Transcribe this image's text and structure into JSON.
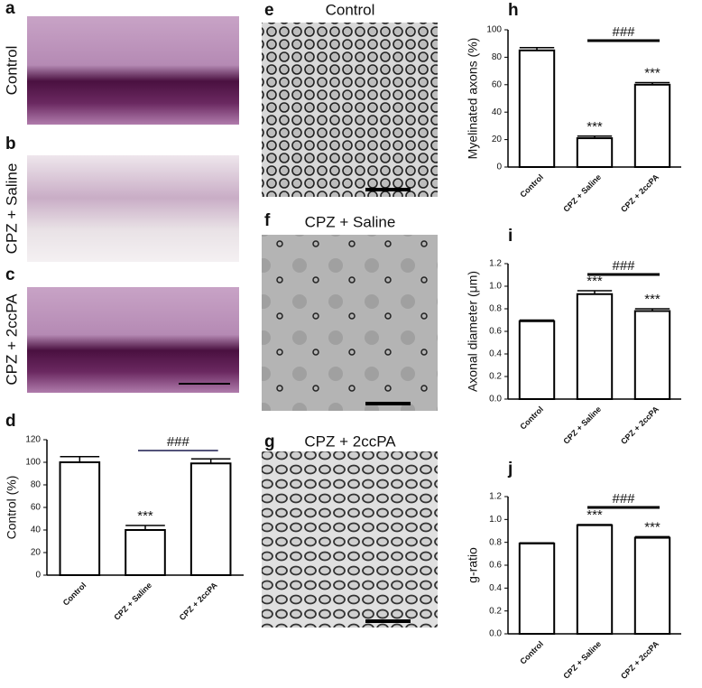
{
  "images": [
    {
      "letter": "a",
      "label": "Control"
    },
    {
      "letter": "b",
      "label": "CPZ + Saline"
    },
    {
      "letter": "c",
      "label": "CPZ + 2ccPA"
    },
    {
      "letter": "e",
      "label": "Control"
    },
    {
      "letter": "f",
      "label": "CPZ + Saline"
    },
    {
      "letter": "g",
      "label": "CPZ + 2ccPA"
    }
  ],
  "chart_data": [
    {
      "type": "bar",
      "panel": "d",
      "y_label": "Control (%)",
      "categories": [
        "Control",
        "CPZ + Saline",
        "CPZ + 2ccPA"
      ],
      "values": [
        100,
        40,
        99
      ],
      "errors": [
        5,
        4,
        4
      ],
      "significance": [
        null,
        "***",
        null
      ],
      "bracket_label": "###",
      "color": "#ffffff",
      "ylim": [
        0,
        120
      ],
      "yticks": [
        0,
        20,
        40,
        60,
        80,
        100,
        120
      ]
    },
    {
      "type": "bar",
      "panel": "h",
      "y_label": "Myelinated axons (%)",
      "categories": [
        "Control",
        "CPZ + Saline",
        "CPZ + 2ccPA"
      ],
      "values": [
        85,
        21,
        60
      ],
      "errors": [
        2,
        1.5,
        1.5
      ],
      "significance": [
        null,
        "***",
        "***"
      ],
      "bracket_label": "###",
      "color": "#ffffff",
      "ylim": [
        0,
        100
      ],
      "yticks": [
        0,
        20,
        40,
        60,
        80,
        100
      ]
    },
    {
      "type": "bar",
      "panel": "i",
      "y_label": "Axonal diameter (μm)",
      "categories": [
        "Control",
        "CPZ + Saline",
        "CPZ + 2ccPA"
      ],
      "values": [
        0.69,
        0.93,
        0.78
      ],
      "errors": [
        0.01,
        0.03,
        0.02
      ],
      "significance": [
        null,
        "***",
        "***"
      ],
      "bracket_label": "###",
      "color": "#ffffff",
      "ylim": [
        0,
        1.2
      ],
      "yticks": [
        {
          "value": 0,
          "label": "0.0"
        },
        0.2,
        0.4,
        0.6,
        0.8,
        {
          "value": 1,
          "label": "1.0"
        },
        1.2
      ]
    },
    {
      "type": "bar",
      "panel": "j",
      "y_label": "g-ratio",
      "categories": [
        "Control",
        "CPZ + Saline",
        "CPZ + 2ccPA"
      ],
      "values": [
        0.79,
        0.95,
        0.84
      ],
      "errors": [
        0.005,
        0.005,
        0.01
      ],
      "significance": [
        null,
        "***",
        "***"
      ],
      "bracket_label": "###",
      "color": "#ffffff",
      "ylim": [
        0,
        1.2
      ],
      "yticks": [
        {
          "value": 0,
          "label": "0.0"
        },
        0.2,
        0.4,
        0.6,
        0.8,
        {
          "value": 1,
          "label": "1.0"
        },
        1.2
      ]
    }
  ]
}
